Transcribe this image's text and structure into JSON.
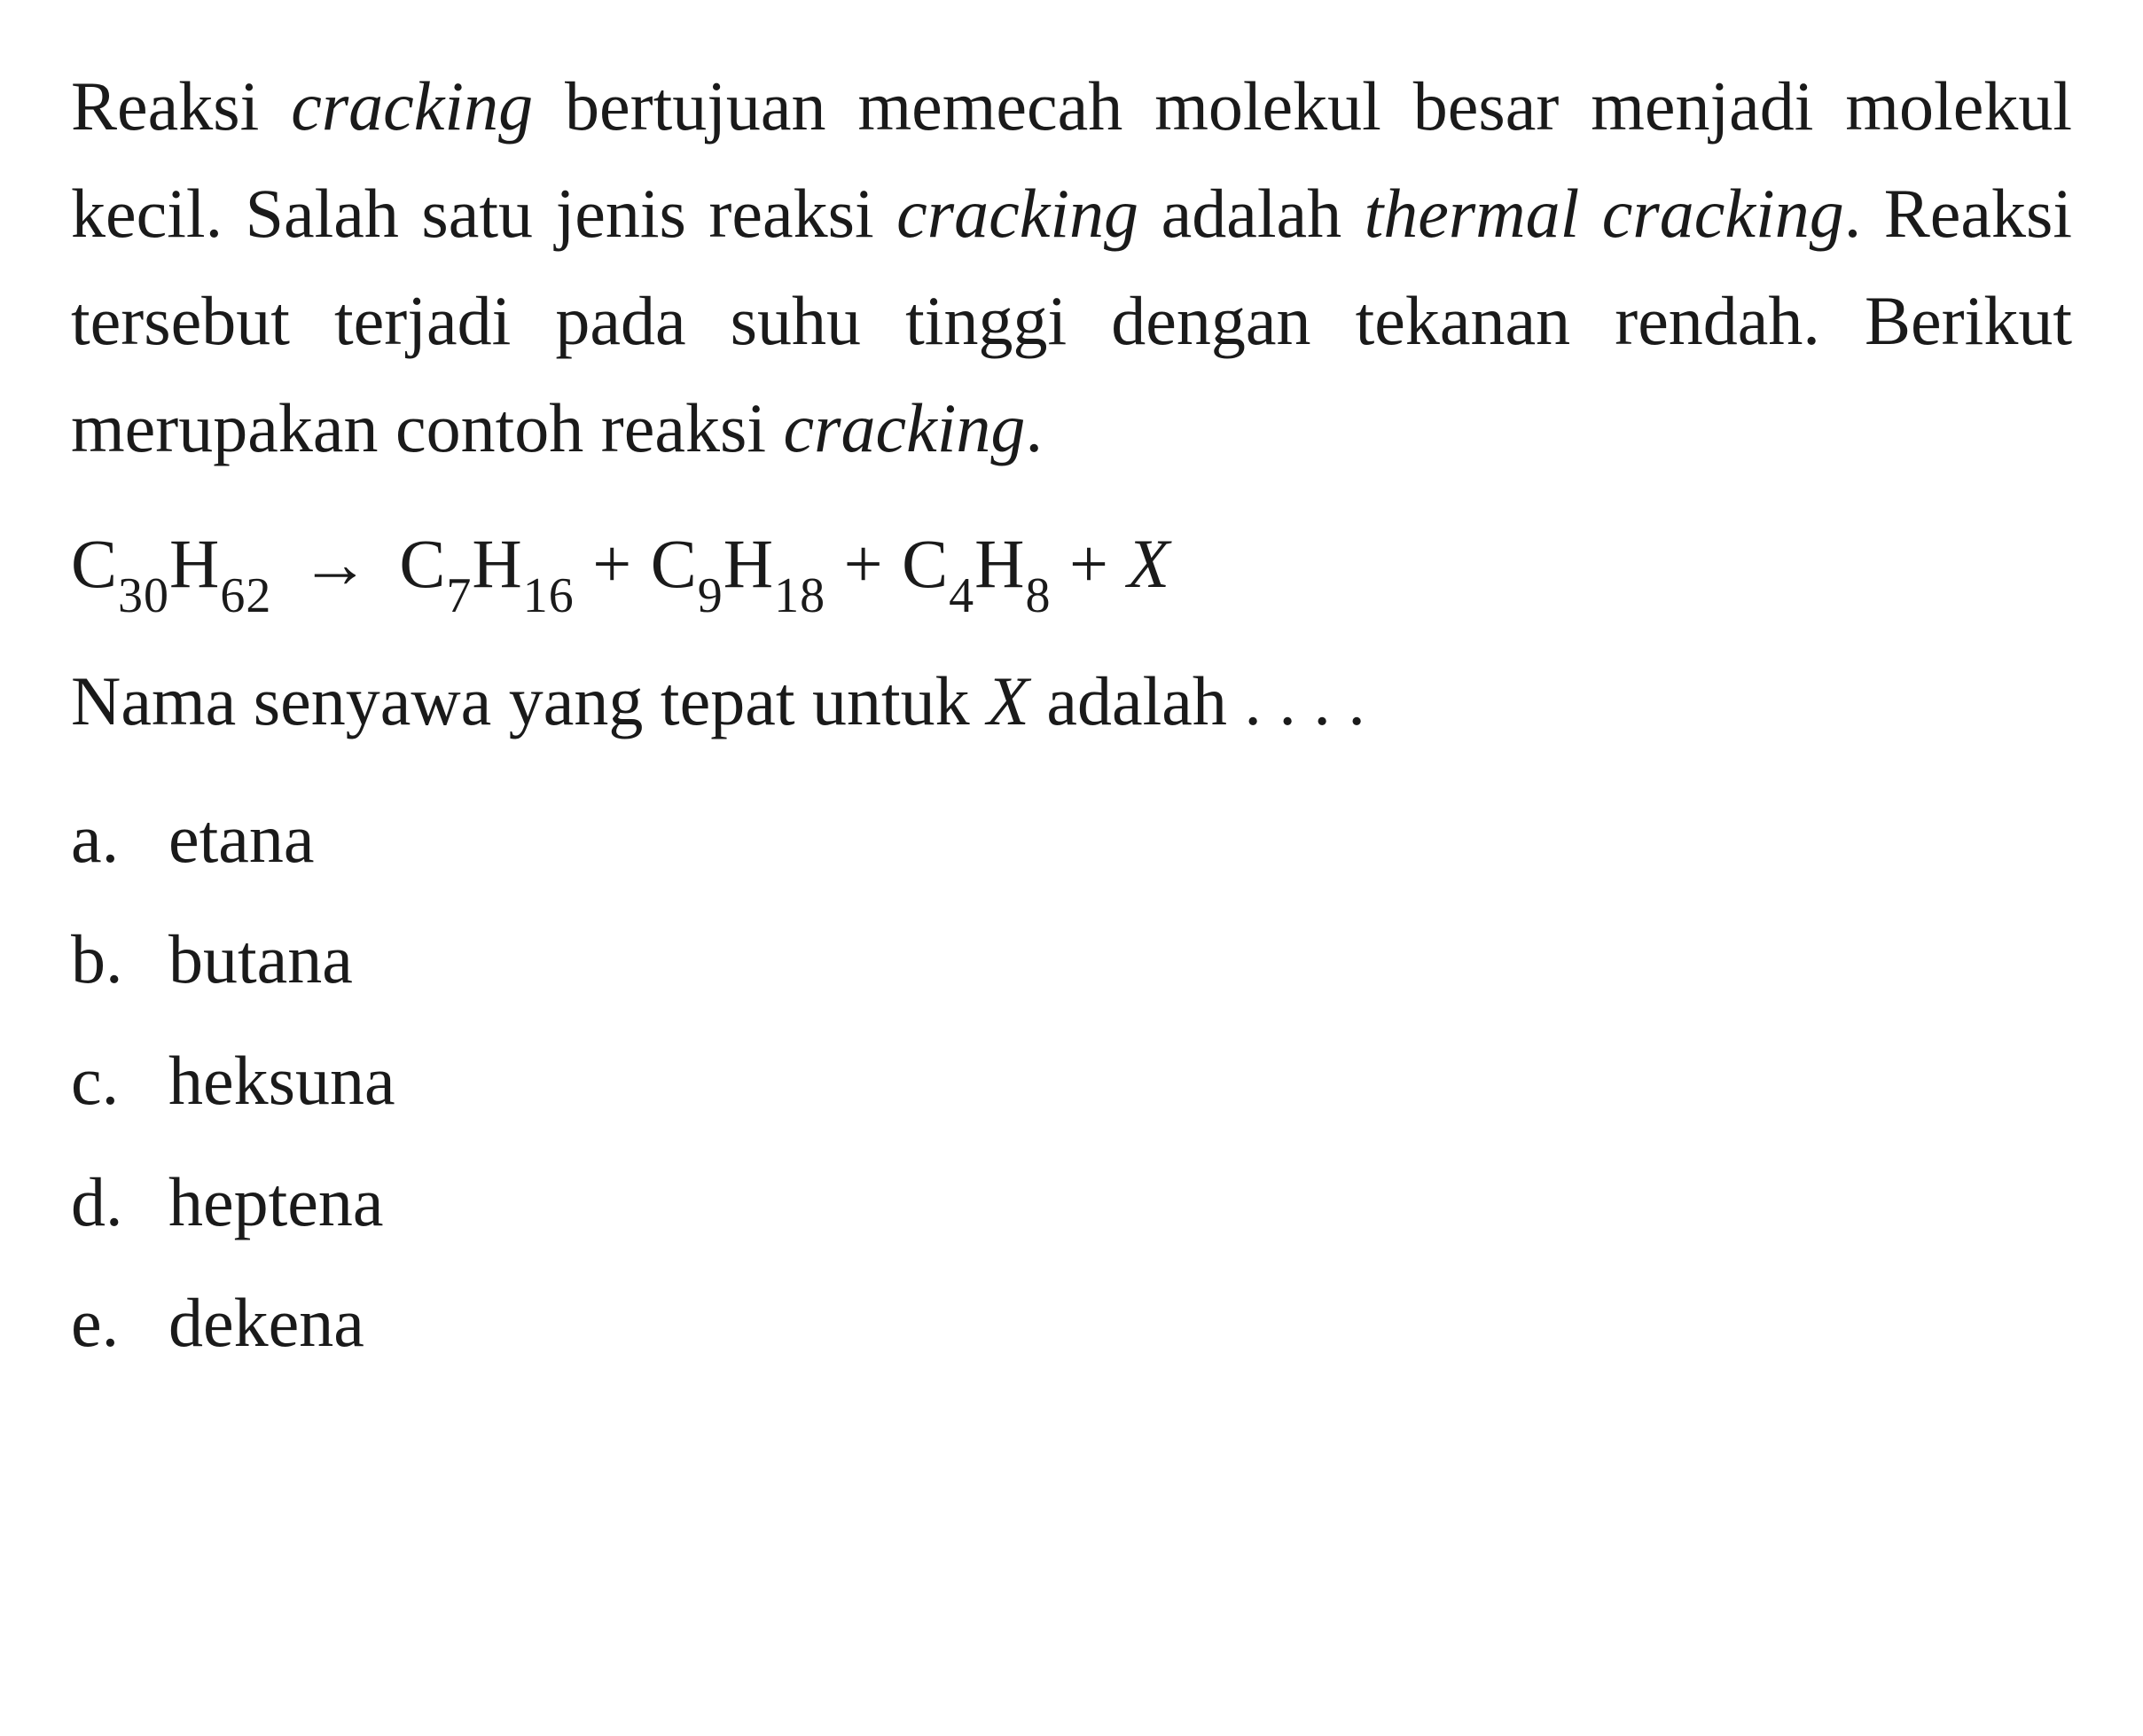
{
  "question": {
    "paragraph_parts": {
      "p1": "Reaksi ",
      "p2": "cracking",
      "p3": " bertujuan memecah molekul besar menjadi molekul kecil. Salah satu jenis reaksi ",
      "p4": "cracking",
      "p5": " adalah ",
      "p6": "thermal cracking",
      "p7": ". Reaksi tersebut terjadi pada suhu tinggi dengan tekanan rendah. Berikut merupakan contoh reaksi ",
      "p8": "cracking",
      "p9": "."
    },
    "equation": {
      "c1": "C",
      "sub1": "30",
      "h1": "H",
      "sub2": "62",
      "arrow": "→",
      "c2": "C",
      "sub3": "7",
      "h2": "H",
      "sub4": "16",
      "plus1": " + ",
      "c3": "C",
      "sub5": "9",
      "h3": "H",
      "sub6": "18",
      "plus2": " + ",
      "c4": "C",
      "sub7": "4",
      "h4": "H",
      "sub8": "8",
      "plus3": " + ",
      "x": "X"
    },
    "followup_parts": {
      "f1": "Nama senyawa yang tepat untuk ",
      "f2": "X",
      "f3": " adalah . . . ."
    },
    "options": [
      {
        "letter": "a.",
        "text": "etana"
      },
      {
        "letter": "b.",
        "text": "butana"
      },
      {
        "letter": "c.",
        "text": "heksuna"
      },
      {
        "letter": "d.",
        "text": "heptena"
      },
      {
        "letter": "e.",
        "text": "dekena"
      }
    ]
  },
  "style": {
    "background_color": "#ffffff",
    "text_color": "#1a1a1a",
    "font_family": "Georgia, Times New Roman, serif",
    "body_fontsize": 78,
    "sub_fontsize": 56,
    "line_height": 1.55
  }
}
